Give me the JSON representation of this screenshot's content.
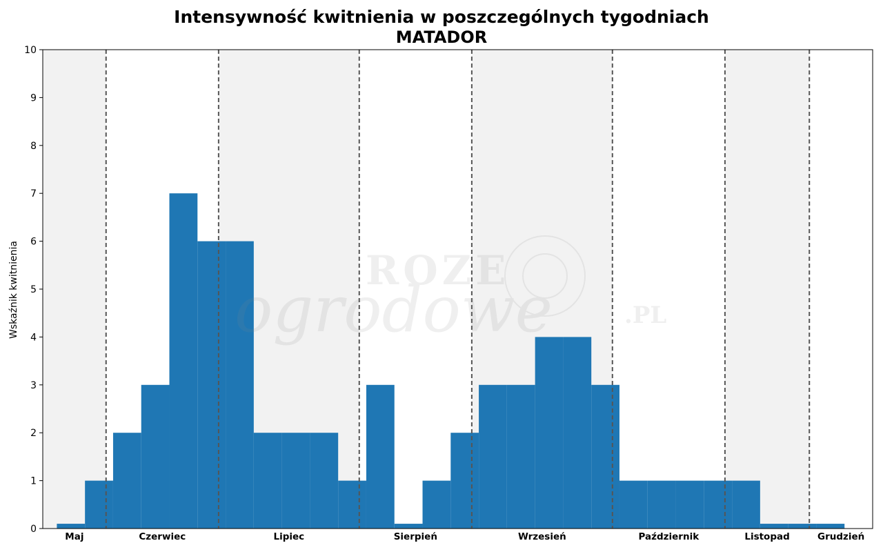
{
  "chart_data": {
    "type": "bar",
    "title": "Intensywność kwitnienia w poszczególnych tygodniach",
    "subtitle": "MATADOR",
    "ylabel": "Wskaźnik kwitnienia",
    "xlabel": "",
    "ylim": [
      0,
      10
    ],
    "yticks": [
      0,
      1,
      2,
      3,
      4,
      5,
      6,
      7,
      8,
      9,
      10
    ],
    "week_range": [
      0,
      29.5
    ],
    "weeks": [
      1,
      2,
      3,
      4,
      5,
      6,
      7,
      8,
      9,
      10,
      11,
      12,
      13,
      14,
      15,
      16,
      17,
      18,
      19,
      20,
      21,
      22,
      23,
      24,
      25,
      26,
      27,
      28,
      29
    ],
    "values": [
      0.1,
      1,
      2,
      3,
      7,
      6,
      6,
      2,
      2,
      2,
      1,
      3,
      0.1,
      1,
      2,
      3,
      3,
      4,
      4,
      3,
      1,
      1,
      1,
      1,
      1,
      0.1,
      0.1,
      0.1,
      0
    ],
    "bar_color": "#1f77b4",
    "months": [
      {
        "label": "Maj",
        "start": 0,
        "end": 2.25,
        "shaded": true
      },
      {
        "label": "Czerwiec",
        "start": 2.25,
        "end": 6.25,
        "shaded": false
      },
      {
        "label": "Lipiec",
        "start": 6.25,
        "end": 11.25,
        "shaded": true
      },
      {
        "label": "Sierpień",
        "start": 11.25,
        "end": 15.25,
        "shaded": false
      },
      {
        "label": "Wrzesień",
        "start": 15.25,
        "end": 20.25,
        "shaded": true
      },
      {
        "label": "Październik",
        "start": 20.25,
        "end": 24.25,
        "shaded": false
      },
      {
        "label": "Listopad",
        "start": 24.25,
        "end": 27.25,
        "shaded": true
      },
      {
        "label": "Grudzień",
        "start": 27.25,
        "end": 29.5,
        "shaded": false
      }
    ],
    "shade_color": "#f2f2f2",
    "divider_color": "#555555",
    "grid": false
  },
  "watermark": "ROZE ogrodowe.PL"
}
